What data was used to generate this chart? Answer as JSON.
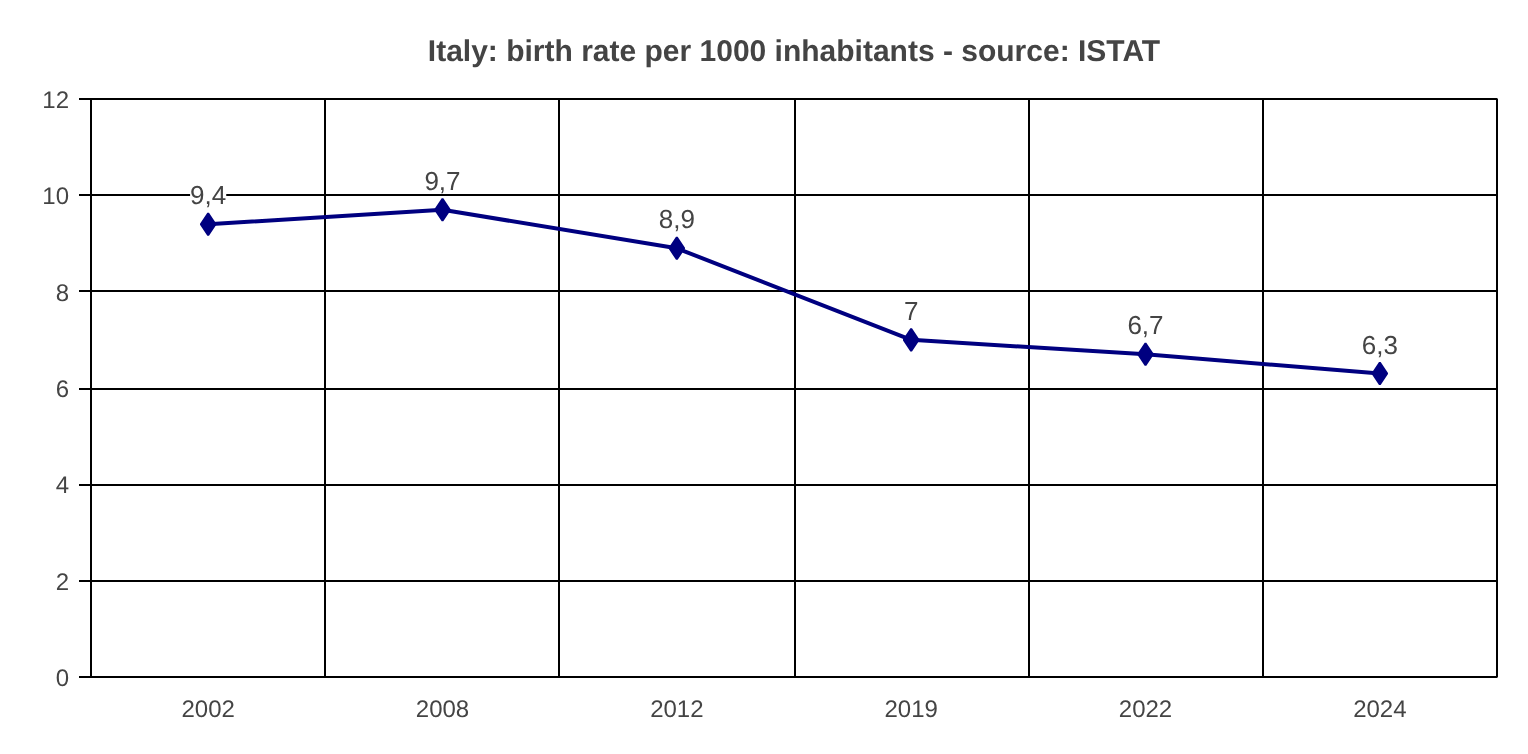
{
  "chart_data": {
    "type": "line",
    "title": "Italy: birth rate per 1000 inhabitants - source: ISTAT",
    "categories": [
      "2002",
      "2008",
      "2012",
      "2019",
      "2022",
      "2024"
    ],
    "values": [
      9.4,
      9.7,
      8.9,
      7,
      6.7,
      6.3
    ],
    "value_labels": [
      "9,4",
      "9,7",
      "8,9",
      "7",
      "6,7",
      "6,3"
    ],
    "color": "#000080",
    "marker": "diamond",
    "line_style": "solid",
    "ylim": [
      0,
      12
    ],
    "yticks": [
      0,
      2,
      4,
      6,
      8,
      10,
      12
    ],
    "grid": true
  }
}
